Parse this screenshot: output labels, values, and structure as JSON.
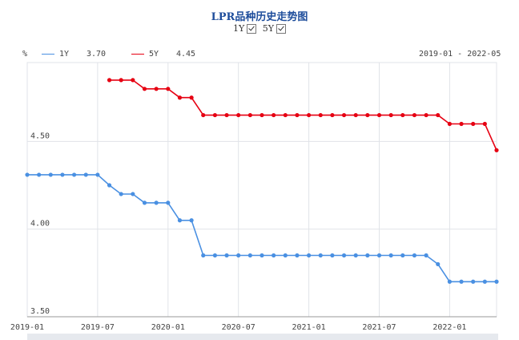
{
  "header": {
    "title": "LPR品种历史走势图",
    "toggle_1y": "1Y",
    "toggle_5y": "5Y"
  },
  "legend": {
    "unit": "%",
    "series_1y_name": "1Y",
    "series_1y_value": "3.70",
    "series_5y_name": "5Y",
    "series_5y_value": "4.45",
    "range": "2019-01 - 2022-05"
  },
  "colors": {
    "series_1y": "#4a90e2",
    "series_5y": "#e60012",
    "grid": "#e0e3e8",
    "axis": "#999999"
  },
  "chart_data": {
    "type": "line",
    "title": "LPR品种历史走势图",
    "x": [
      "2019-01",
      "2019-02",
      "2019-03",
      "2019-04",
      "2019-05",
      "2019-06",
      "2019-07",
      "2019-08",
      "2019-09",
      "2019-10",
      "2019-11",
      "2019-12",
      "2020-01",
      "2020-02",
      "2020-03",
      "2020-04",
      "2020-05",
      "2020-06",
      "2020-07",
      "2020-08",
      "2020-09",
      "2020-10",
      "2020-11",
      "2020-12",
      "2021-01",
      "2021-02",
      "2021-03",
      "2021-04",
      "2021-05",
      "2021-06",
      "2021-07",
      "2021-08",
      "2021-09",
      "2021-10",
      "2021-11",
      "2021-12",
      "2022-01",
      "2022-02",
      "2022-03",
      "2022-04",
      "2022-05"
    ],
    "x_tick_labels": [
      "2019-01",
      "2019-07",
      "2020-01",
      "2020-07",
      "2021-01",
      "2021-07",
      "2022-01"
    ],
    "y_tick_labels": [
      "4.50",
      "4.00",
      "3.50"
    ],
    "ylim": [
      3.5,
      4.95
    ],
    "grid": true,
    "series": [
      {
        "name": "1Y",
        "values": [
          4.31,
          4.31,
          4.31,
          4.31,
          4.31,
          4.31,
          4.31,
          4.25,
          4.2,
          4.2,
          4.15,
          4.15,
          4.15,
          4.05,
          4.05,
          3.85,
          3.85,
          3.85,
          3.85,
          3.85,
          3.85,
          3.85,
          3.85,
          3.85,
          3.85,
          3.85,
          3.85,
          3.85,
          3.85,
          3.85,
          3.85,
          3.85,
          3.85,
          3.85,
          3.85,
          3.8,
          3.7,
          3.7,
          3.7,
          3.7,
          3.7
        ]
      },
      {
        "name": "5Y",
        "values": [
          null,
          null,
          null,
          null,
          null,
          null,
          null,
          4.85,
          4.85,
          4.85,
          4.8,
          4.8,
          4.8,
          4.75,
          4.75,
          4.65,
          4.65,
          4.65,
          4.65,
          4.65,
          4.65,
          4.65,
          4.65,
          4.65,
          4.65,
          4.65,
          4.65,
          4.65,
          4.65,
          4.65,
          4.65,
          4.65,
          4.65,
          4.65,
          4.65,
          4.65,
          4.6,
          4.6,
          4.6,
          4.6,
          4.45
        ]
      }
    ]
  }
}
